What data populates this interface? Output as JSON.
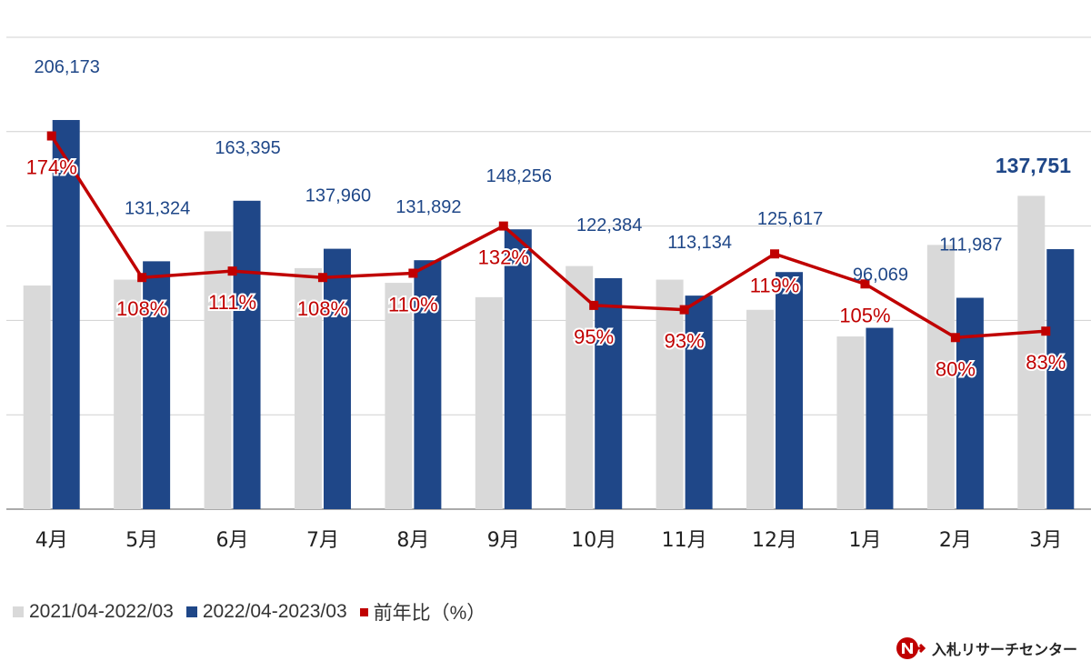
{
  "chart_data": {
    "type": "bar",
    "categories": [
      "4月",
      "5月",
      "6月",
      "7月",
      "8月",
      "9月",
      "10月",
      "11月",
      "12月",
      "1月",
      "2月",
      "3月"
    ],
    "series": [
      {
        "name": "2021/04-2022/03",
        "type": "bar",
        "color": "#d9d9d9",
        "values": [
          118500,
          121600,
          147200,
          127700,
          119900,
          112300,
          128800,
          121600,
          105600,
          91500,
          140000,
          166000
        ]
      },
      {
        "name": "2022/04-2023/03",
        "type": "bar",
        "color": "#1f4788",
        "values": [
          206173,
          131324,
          163395,
          137960,
          131892,
          148256,
          122384,
          113134,
          125617,
          96069,
          111987,
          137751
        ]
      },
      {
        "name": "前年比（%）",
        "type": "line",
        "color": "#c00000",
        "values": [
          174,
          108,
          111,
          108,
          110,
          132,
          95,
          93,
          119,
          105,
          80,
          83
        ]
      }
    ],
    "value_labels": [
      "206,173",
      "131,324",
      "163,395",
      "137,960",
      "131,892",
      "148,256",
      "122,384",
      "113,134",
      "125,617",
      "96,069",
      "111,987",
      "137,751"
    ],
    "pct_labels": [
      "174%",
      "108%",
      "111%",
      "108%",
      "110%",
      "132%",
      "95%",
      "93%",
      "119%",
      "105%",
      "80%",
      "83%"
    ],
    "ylim": [
      0,
      250000
    ],
    "ylim_pct": [
      0,
      220
    ],
    "grid": true,
    "legend_position": "bottom-left"
  },
  "legend": [
    {
      "label": "2021/04-2022/03",
      "color": "#d9d9d9",
      "marker": "square"
    },
    {
      "label": "2022/04-2023/03",
      "color": "#1f4788",
      "marker": "square"
    },
    {
      "label": "前年比（%）",
      "color": "#c00000",
      "marker": "small-square"
    }
  ],
  "brand": {
    "name": "入札リサーチセンター",
    "icon": "logo-icon"
  }
}
